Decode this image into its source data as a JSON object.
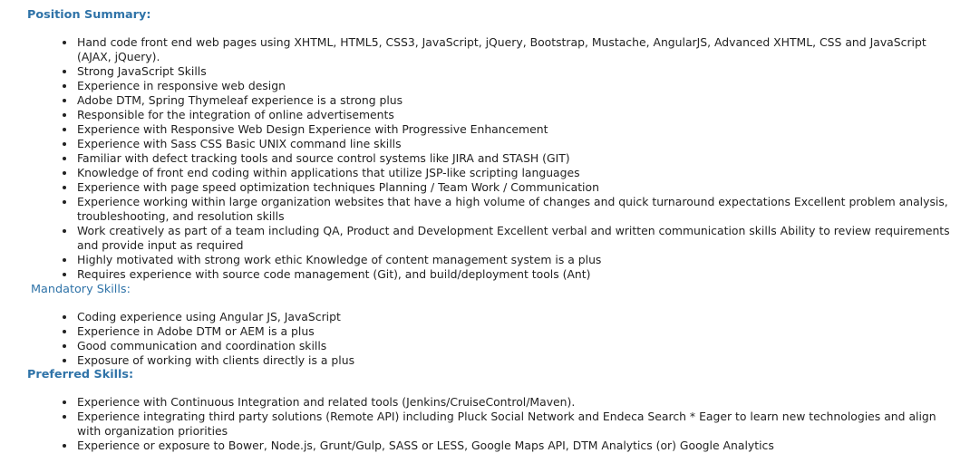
{
  "colors": {
    "heading": "#2f73a8",
    "text": "#222222",
    "background": "#ffffff"
  },
  "sections": [
    {
      "heading": "Position Summary:",
      "items": [
        "Hand code front end web pages using XHTML, HTML5, CSS3, JavaScript, jQuery, Bootstrap, Mustache, AngularJS, Advanced XHTML, CSS and JavaScript (AJAX, jQuery).",
        "Strong JavaScript Skills",
        "Experience in responsive web design",
        "Adobe DTM, Spring Thymeleaf experience is a strong plus",
        "Responsible for the integration of online advertisements",
        "Experience with Responsive Web Design Experience with Progressive Enhancement",
        "Experience with Sass CSS Basic UNIX command line skills",
        "Familiar with defect tracking tools and source control systems like JIRA and STASH (GIT)",
        "Knowledge of front end coding within applications that utilize JSP-like scripting languages",
        "Experience with page speed optimization techniques Planning / Team Work / Communication",
        "Experience working within large organization websites that have a high volume of changes and quick turnaround expectations Excellent problem analysis, troubleshooting, and resolution skills",
        "Work creatively as part of a team including QA, Product and Development Excellent verbal and written communication skills Ability to review requirements and provide input as required",
        "Highly motivated with strong work ethic Knowledge of content management system is a plus",
        "Requires experience with source code management (Git), and build/deployment tools (Ant)"
      ]
    },
    {
      "heading": "Mandatory Skills:",
      "items": [
        "Coding experience using Angular JS,  JavaScript",
        "Experience in Adobe DTM or AEM is a plus",
        "Good communication and coordination skills",
        "Exposure of working with clients directly is a plus"
      ]
    },
    {
      "heading": "Preferred Skills:",
      "items": [
        "Experience with Continuous Integration and related tools (Jenkins/CruiseControl/Maven).",
        "Experience integrating third party solutions (Remote API) including Pluck Social Network and Endeca Search * Eager to learn new technologies and align with organization priorities",
        "Experience or exposure to Bower, Node.js, Grunt/Gulp, SASS or LESS, Google Maps API, DTM Analytics (or) Google Analytics"
      ]
    }
  ]
}
